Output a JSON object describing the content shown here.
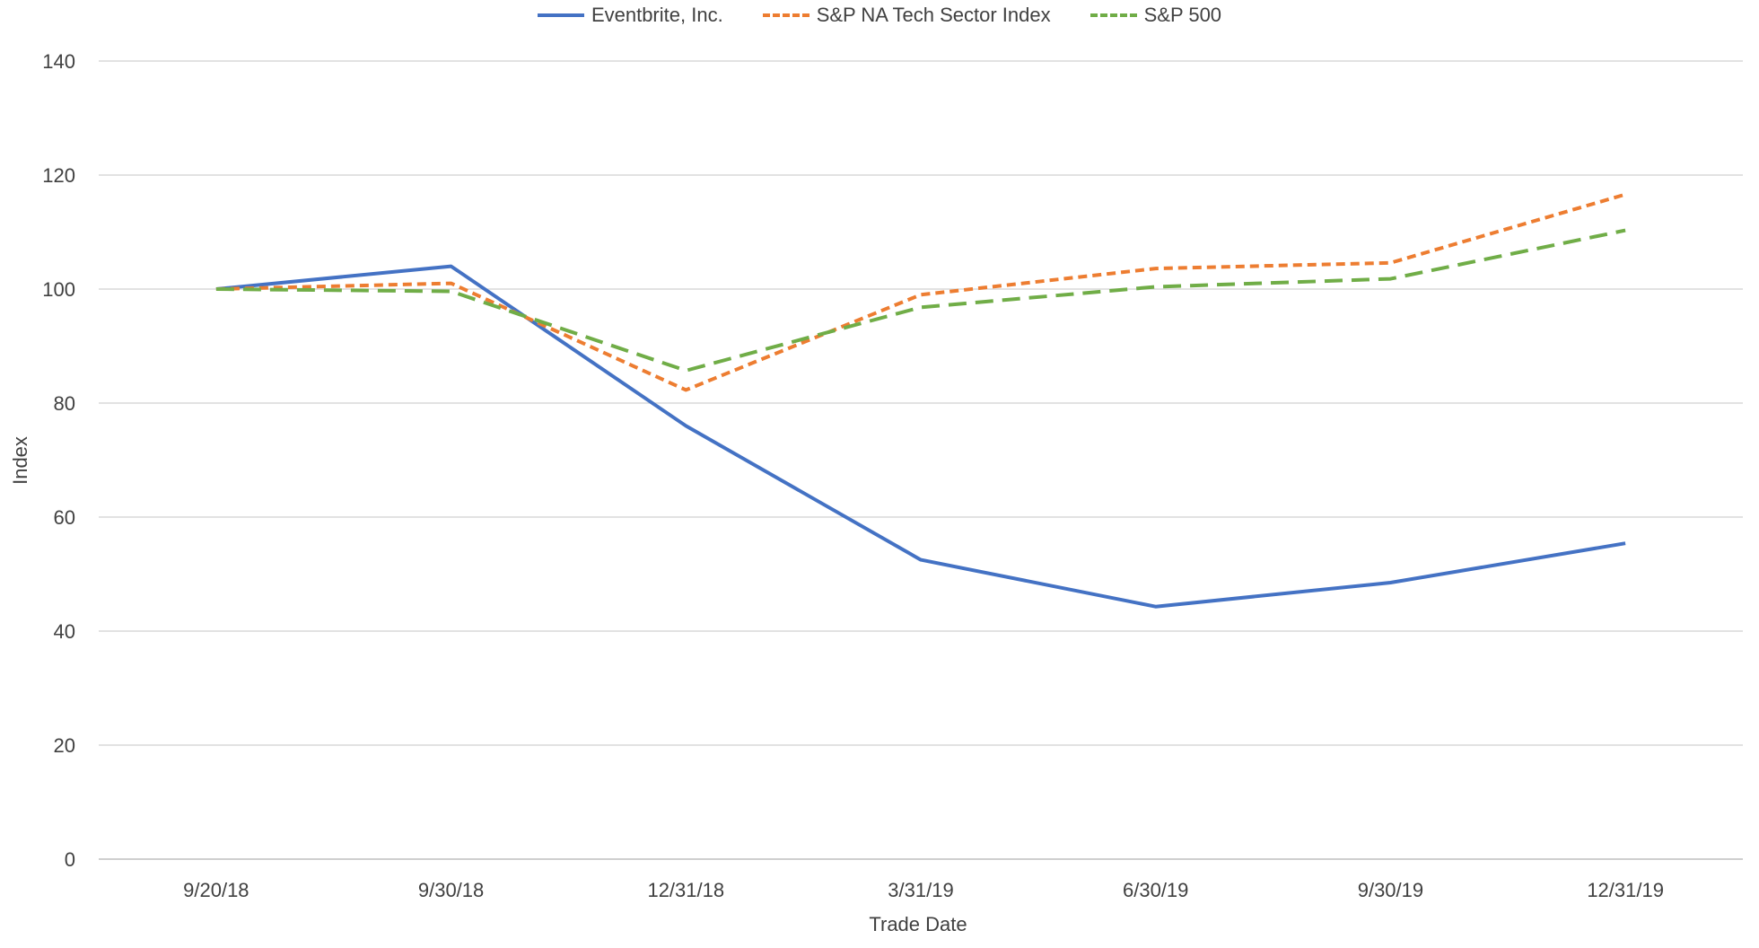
{
  "chart_data": {
    "type": "line",
    "title": "",
    "xlabel": "Trade Date",
    "ylabel": "Index",
    "ylim": [
      0,
      140
    ],
    "yticks": [
      0,
      20,
      40,
      60,
      80,
      100,
      120,
      140
    ],
    "grid": true,
    "legend_position": "top-center",
    "categories": [
      "9/20/18",
      "9/30/18",
      "12/31/18",
      "3/31/19",
      "6/30/19",
      "9/30/19",
      "12/31/19"
    ],
    "series": [
      {
        "name": "Eventbrite, Inc.",
        "color": "#4472C4",
        "style": "solid",
        "values": [
          100,
          104,
          76,
          52.5,
          44.3,
          48.5,
          55.4
        ]
      },
      {
        "name": "S&P NA Tech Sector Index",
        "color": "#ED7D31",
        "style": "dashed-short",
        "values": [
          100,
          101,
          82.3,
          99,
          103.6,
          104.6,
          116.6
        ]
      },
      {
        "name": "S&P 500",
        "color": "#70AD47",
        "style": "dashed-long",
        "values": [
          100,
          99.6,
          85.7,
          96.8,
          100.4,
          101.8,
          110.3
        ]
      }
    ]
  }
}
